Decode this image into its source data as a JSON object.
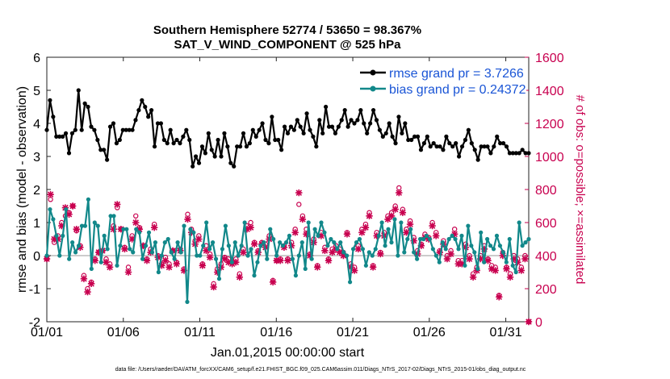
{
  "chart_data": {
    "type": "line",
    "title": "Southern Hemisphere 52774 / 53650 = 98.367%",
    "subtitle": "SAT_V_WIND_COMPONENT @ 525 hPa",
    "xlabel": "Jan.01,2015 00:00:00 start",
    "ylabel": "rmse and bias (model - observation)",
    "y2label": "# of obs: o=possible; ×=assimilated",
    "xlim": [
      0,
      31.5
    ],
    "ylim": [
      -2,
      6
    ],
    "y2lim": [
      0,
      1600
    ],
    "x_ticks": [
      0,
      5,
      10,
      15,
      20,
      25,
      30
    ],
    "x_tick_labels": [
      "01/01",
      "01/06",
      "01/11",
      "01/16",
      "01/21",
      "01/26",
      "01/31"
    ],
    "y_ticks": [
      "-2",
      "-1",
      "0",
      "1",
      "2",
      "3",
      "4",
      "5",
      "6"
    ],
    "y2_ticks": [
      "0",
      "200",
      "400",
      "600",
      "800",
      "1000",
      "1200",
      "1400",
      "1600"
    ],
    "footnote": "data file: /Users/raeder/DAI/ATM_forcXX/CAM6_setup/f.e21.FHIST_BGC.f09_025.CAM6assim.011/Diags_NTrS_2017-02/Diags_NTrS_2015-01/obs_diag_output.nc",
    "colors": {
      "rmse": "#000000",
      "bias": "#12888a",
      "obs": "#c8004f",
      "legend_text": "#1a55d6",
      "zero_line": "#bbbbbb"
    },
    "series": [
      {
        "name": "rmse grand pr = 3.7266",
        "axis": "left",
        "values": [
          3.8,
          4.7,
          4.2,
          3.6,
          3.6,
          3.6,
          3.7,
          3.1,
          3.7,
          3.8,
          5.0,
          3.8,
          4.6,
          4.5,
          3.9,
          3.8,
          3.5,
          3.2,
          3.2,
          2.9,
          3.9,
          4.0,
          3.4,
          3.5,
          3.8,
          3.8,
          3.8,
          3.8,
          4.1,
          4.4,
          4.7,
          4.5,
          4.2,
          4.4,
          3.3,
          4.0,
          4.0,
          3.5,
          3.4,
          3.8,
          3.4,
          3.5,
          3.4,
          3.6,
          3.8,
          3.5,
          2.7,
          3.0,
          2.8,
          3.3,
          3.1,
          3.7,
          3.2,
          3.0,
          3.5,
          3.0,
          3.7,
          3.3,
          2.8,
          2.7,
          3.3,
          3.3,
          3.7,
          3.3,
          3.4,
          3.8,
          3.6,
          3.8,
          4.0,
          3.5,
          3.4,
          4.2,
          3.5,
          3.5,
          3.2,
          3.9,
          3.7,
          3.9,
          3.8,
          4.1,
          3.9,
          3.7,
          4.3,
          3.8,
          3.6,
          3.3,
          4.1,
          3.7,
          4.5,
          3.9,
          3.9,
          3.7,
          3.9,
          4.1,
          4.4,
          3.9,
          4.1,
          4.0,
          4.1,
          4.4,
          4.0,
          3.7,
          4.0,
          4.4,
          4.1,
          3.8,
          3.6,
          3.7,
          4.0,
          3.6,
          3.4,
          4.2,
          3.7,
          4.0,
          3.5,
          3.5,
          3.6,
          3.6,
          3.2,
          3.4,
          3.6,
          3.3,
          3.4,
          3.3,
          3.3,
          3.2,
          3.6,
          3.4,
          3.3,
          3.4,
          3.0,
          3.3,
          3.5,
          3.8,
          3.4,
          3.2,
          2.9,
          3.3,
          3.3,
          3.3,
          3.1,
          3.3,
          3.6,
          3.4,
          3.4,
          3.3,
          3.1,
          3.1,
          3.1,
          3.1,
          3.2,
          3.1,
          3.1
        ]
      },
      {
        "name": "bias grand pr = 0.24372",
        "axis": "left",
        "values": [
          0.0,
          1.4,
          1.1,
          0.6,
          0.0,
          0.6,
          1.4,
          -0.1,
          0.4,
          0.1,
          0.3,
          0.9,
          0.9,
          1.7,
          -0.4,
          1.0,
          0.9,
          -0.2,
          0.6,
          0.2,
          1.2,
          1.2,
          -0.3,
          0.3,
          0.8,
          0.8,
          0.2,
          0.1,
          0.8,
          0.7,
          -0.1,
          0.3,
          0.7,
          0.1,
          0.4,
          -0.5,
          0.0,
          0.4,
          0.5,
          0.1,
          -0.1,
          0.4,
          0.1,
          0.9,
          -1.4,
          0.8,
          0.7,
          0.0,
          0.0,
          0.3,
          1.0,
          0.2,
          0.4,
          -0.1,
          -0.7,
          0.2,
          0.9,
          0.3,
          -0.2,
          0.4,
          0.0,
          0.3,
          1.0,
          0.0,
          0.2,
          -0.6,
          -0.2,
          0.3,
          0.4,
          -0.1,
          0.8,
          0.5,
          0.0,
          0.4,
          0.3,
          0.4,
          0.6,
          -0.1,
          -0.6,
          0.0,
          0.4,
          -0.4,
          1.0,
          -0.1,
          0.8,
          0.6,
          1.0,
          0.7,
          0.3,
          0.5,
          0.4,
          0.2,
          0.4,
          0.1,
          0.0,
          -0.8,
          0.2,
          0.4,
          0.5,
          0.2,
          -0.3,
          0.1,
          0.0,
          0.2,
          0.6,
          1.0,
          0.3,
          0.8,
          0.4,
          1.1,
          0.0,
          1.0,
          0.1,
          0.5,
          0.8,
          0.1,
          -0.1,
          0.5,
          0.5,
          0.6,
          0.5,
          0.2,
          0.0,
          -0.2,
          0.4,
          0.2,
          0.5,
          0.6,
          0.5,
          0.2,
          0.6,
          -0.3,
          0.9,
          0.3,
          0.1,
          -0.4,
          0.7,
          -0.2,
          0.5,
          0.3,
          0.2,
          0.6,
          0.3,
          0.1,
          -0.2,
          0.5,
          -0.3,
          -0.5,
          1.0,
          0.3,
          0.4,
          0.5
        ]
      },
      {
        "name": "obs possible",
        "axis": "right",
        "values": [
          380,
          740,
          480,
          520,
          600,
          640,
          660,
          700,
          550,
          460,
          280,
          200,
          240,
          380,
          420,
          430,
          380,
          350,
          580,
          690,
          560,
          450,
          330,
          520,
          640,
          570,
          460,
          380,
          440,
          590,
          400,
          350,
          390,
          350,
          430,
          360,
          440,
          320,
          650,
          560,
          490,
          520,
          350,
          460,
          410,
          230,
          320,
          350,
          390,
          380,
          360,
          380,
          290,
          440,
          580,
          600,
          480,
          430,
          480,
          470,
          520,
          250,
          370,
          380,
          460,
          380,
          480,
          560,
          710,
          640,
          560,
          410,
          500,
          340,
          540,
          450,
          380,
          440,
          460,
          440,
          420,
          540,
          350,
          330,
          460,
          560,
          590,
          660,
          340,
          540,
          420,
          540,
          640,
          660,
          700,
          810,
          680,
          560,
          610,
          510,
          430,
          470,
          530,
          510,
          600,
          540,
          430,
          490,
          400,
          430,
          560,
          370,
          370,
          470,
          400,
          290,
          330,
          400,
          460,
          380,
          340,
          330,
          160,
          420,
          330,
          290,
          400,
          380,
          330,
          400,
          0
        ]
      },
      {
        "name": "obs assimilated",
        "axis": "right",
        "values": [
          380,
          770,
          500,
          500,
          580,
          690,
          650,
          700,
          560,
          450,
          260,
          180,
          230,
          370,
          420,
          430,
          360,
          330,
          560,
          710,
          560,
          440,
          300,
          500,
          600,
          560,
          460,
          370,
          420,
          570,
          390,
          340,
          370,
          330,
          430,
          350,
          430,
          310,
          620,
          540,
          470,
          500,
          340,
          430,
          390,
          210,
          300,
          330,
          380,
          360,
          350,
          360,
          270,
          420,
          560,
          570,
          470,
          420,
          470,
          450,
          500,
          240,
          370,
          370,
          450,
          370,
          460,
          540,
          780,
          620,
          530,
          400,
          480,
          330,
          520,
          430,
          370,
          420,
          440,
          420,
          400,
          530,
          330,
          310,
          440,
          540,
          570,
          640,
          330,
          520,
          410,
          520,
          620,
          640,
          680,
          780,
          660,
          540,
          590,
          490,
          410,
          460,
          510,
          500,
          580,
          520,
          420,
          470,
          380,
          410,
          530,
          350,
          350,
          450,
          380,
          270,
          310,
          380,
          440,
          370,
          320,
          310,
          150,
          400,
          320,
          270,
          380,
          360,
          310,
          380,
          0
        ]
      }
    ]
  }
}
